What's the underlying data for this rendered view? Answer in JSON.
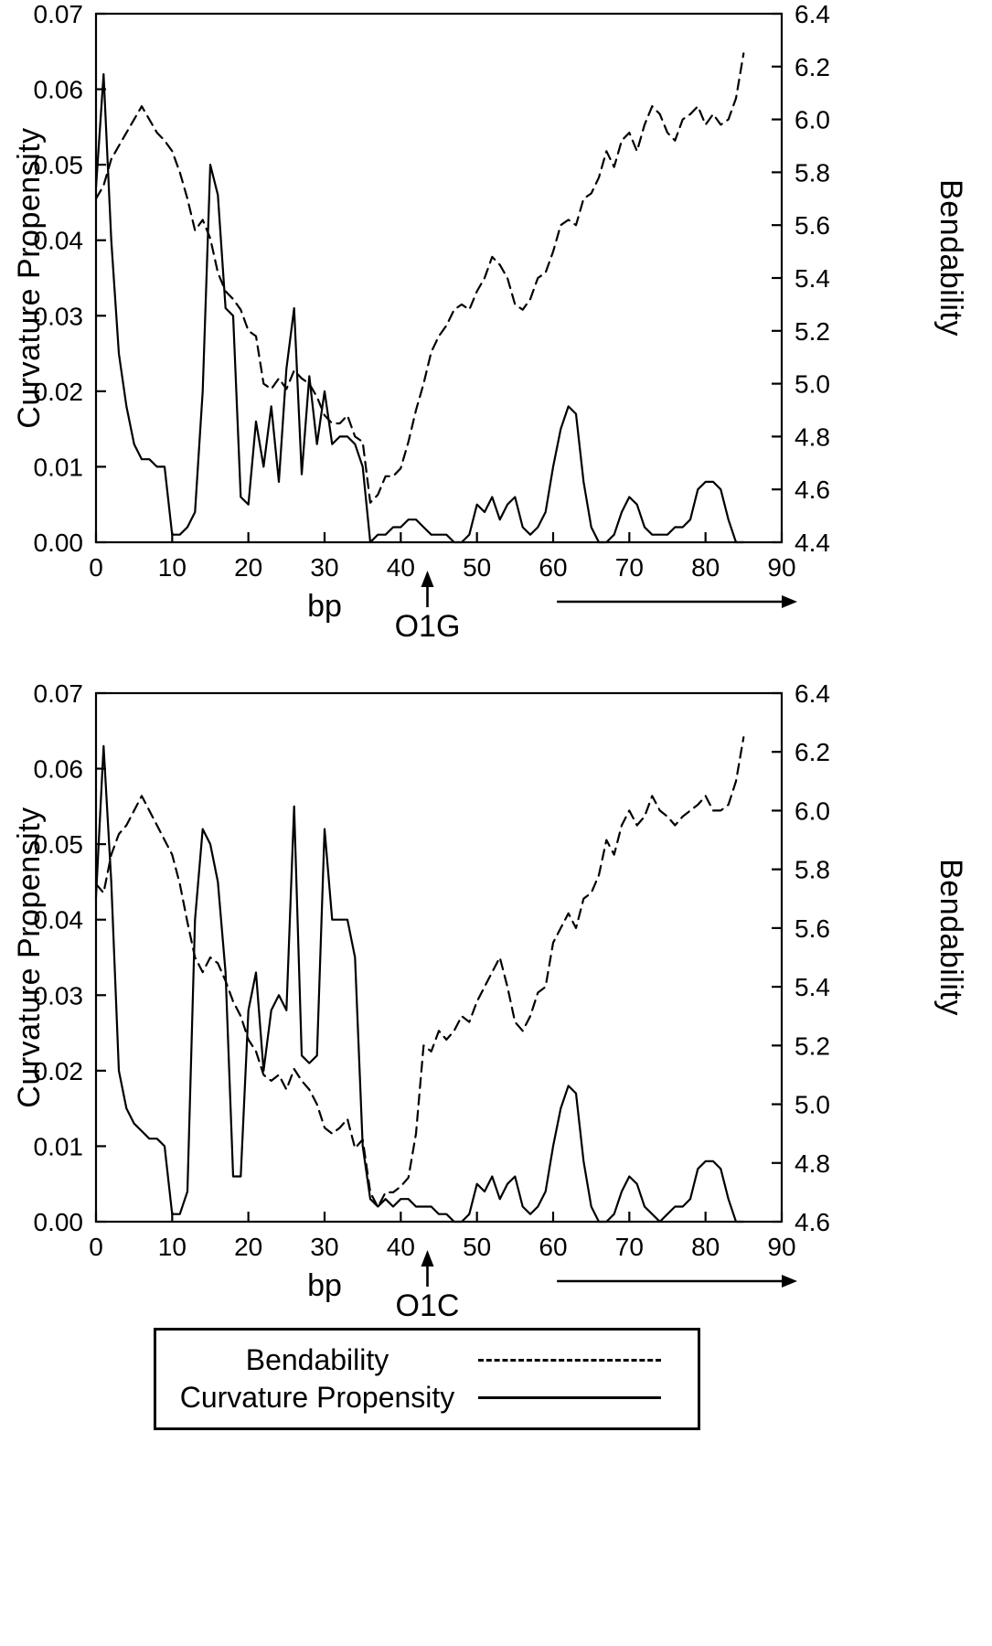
{
  "figure": {
    "background": "#ffffff",
    "line_color": "#000000"
  },
  "legend": {
    "items": [
      {
        "label": "Bendability",
        "style": "dashed"
      },
      {
        "label": "Curvature Propensity",
        "style": "solid"
      }
    ]
  },
  "chart_data": [
    {
      "type": "line",
      "title": "",
      "xlabel": "bp",
      "ylabel_left": "Curvature Propensity",
      "ylabel_right": "Bendability",
      "xlim": [
        0,
        90
      ],
      "xtick_labels": [
        "0",
        "10",
        "20",
        "30",
        "40",
        "50",
        "60",
        "70",
        "80",
        "90"
      ],
      "ylim_left": [
        0,
        0.07
      ],
      "ytick_labels_left": [
        "0.00",
        "0.01",
        "0.02",
        "0.03",
        "0.04",
        "0.05",
        "0.06",
        "0.07"
      ],
      "ylim_right": [
        4.4,
        6.4
      ],
      "ytick_labels_right": [
        "4.4",
        "4.6",
        "4.8",
        "5.0",
        "5.2",
        "5.4",
        "5.6",
        "5.8",
        "6.0",
        "6.2",
        "6.4"
      ],
      "grid": false,
      "annotation": {
        "label": "O1G",
        "x": 43.5
      },
      "direction_arrow": {
        "x_start": 60.5,
        "x_end": 90
      },
      "x": [
        0,
        1,
        2,
        3,
        4,
        5,
        6,
        7,
        8,
        9,
        10,
        11,
        12,
        13,
        14,
        15,
        16,
        17,
        18,
        19,
        20,
        21,
        22,
        23,
        24,
        25,
        26,
        27,
        28,
        29,
        30,
        31,
        32,
        33,
        34,
        35,
        36,
        37,
        38,
        39,
        40,
        41,
        42,
        43,
        44,
        45,
        46,
        47,
        48,
        49,
        50,
        51,
        52,
        53,
        54,
        55,
        56,
        57,
        58,
        59,
        60,
        61,
        62,
        63,
        64,
        65,
        66,
        67,
        68,
        69,
        70,
        71,
        72,
        73,
        74,
        75,
        76,
        77,
        78,
        79,
        80,
        81,
        82,
        83,
        84,
        85
      ],
      "series": [
        {
          "name": "Curvature Propensity",
          "axis": "left",
          "style": "solid",
          "values": [
            0.047,
            0.062,
            0.04,
            0.025,
            0.018,
            0.013,
            0.011,
            0.011,
            0.01,
            0.01,
            0.001,
            0.001,
            0.002,
            0.004,
            0.02,
            0.05,
            0.046,
            0.031,
            0.03,
            0.006,
            0.005,
            0.016,
            0.01,
            0.018,
            0.008,
            0.023,
            0.031,
            0.009,
            0.022,
            0.013,
            0.02,
            0.013,
            0.014,
            0.014,
            0.013,
            0.01,
            0.0,
            0.001,
            0.001,
            0.002,
            0.002,
            0.003,
            0.003,
            0.002,
            0.001,
            0.001,
            0.001,
            0.0,
            0.0,
            0.001,
            0.005,
            0.004,
            0.006,
            0.003,
            0.005,
            0.006,
            0.002,
            0.001,
            0.002,
            0.004,
            0.01,
            0.015,
            0.018,
            0.017,
            0.008,
            0.002,
            0.0,
            0.0,
            0.001,
            0.004,
            0.006,
            0.005,
            0.002,
            0.001,
            0.001,
            0.001,
            0.002,
            0.002,
            0.003,
            0.007,
            0.008,
            0.008,
            0.007,
            0.003,
            0.0,
            0.0
          ]
        },
        {
          "name": "Bendability",
          "axis": "right",
          "style": "dashed",
          "values": [
            5.7,
            5.75,
            5.85,
            5.9,
            5.95,
            6.0,
            6.05,
            6.0,
            5.95,
            5.92,
            5.88,
            5.8,
            5.7,
            5.58,
            5.62,
            5.55,
            5.42,
            5.35,
            5.32,
            5.28,
            5.2,
            5.18,
            5.0,
            4.98,
            5.02,
            4.98,
            5.05,
            5.02,
            5.0,
            4.95,
            4.88,
            4.85,
            4.85,
            4.88,
            4.8,
            4.78,
            4.55,
            4.58,
            4.65,
            4.65,
            4.68,
            4.78,
            4.9,
            5.0,
            5.12,
            5.18,
            5.22,
            5.28,
            5.3,
            5.28,
            5.35,
            5.4,
            5.48,
            5.45,
            5.4,
            5.3,
            5.28,
            5.32,
            5.4,
            5.42,
            5.5,
            5.6,
            5.62,
            5.6,
            5.7,
            5.72,
            5.78,
            5.88,
            5.82,
            5.92,
            5.95,
            5.88,
            5.98,
            6.05,
            6.02,
            5.95,
            5.92,
            6.0,
            6.02,
            6.05,
            5.98,
            6.02,
            5.98,
            6.0,
            6.08,
            6.25
          ]
        }
      ]
    },
    {
      "type": "line",
      "title": "",
      "xlabel": "bp",
      "ylabel_left": "Curvature Propensity",
      "ylabel_right": "Bendability",
      "xlim": [
        0,
        90
      ],
      "xtick_labels": [
        "0",
        "10",
        "20",
        "30",
        "40",
        "50",
        "60",
        "70",
        "80",
        "90"
      ],
      "ylim_left": [
        0,
        0.07
      ],
      "ytick_labels_left": [
        "0.00",
        "0.01",
        "0.02",
        "0.03",
        "0.04",
        "0.05",
        "0.06",
        "0.07"
      ],
      "ylim_right": [
        4.6,
        6.4
      ],
      "ytick_labels_right": [
        "4.6",
        "4.8",
        "5.0",
        "5.2",
        "5.4",
        "5.6",
        "5.8",
        "6.0",
        "6.2",
        "6.4"
      ],
      "grid": false,
      "annotation": {
        "label": "O1C",
        "x": 43.5
      },
      "direction_arrow": {
        "x_start": 60.5,
        "x_end": 90
      },
      "x": [
        0,
        1,
        2,
        3,
        4,
        5,
        6,
        7,
        8,
        9,
        10,
        11,
        12,
        13,
        14,
        15,
        16,
        17,
        18,
        19,
        20,
        21,
        22,
        23,
        24,
        25,
        26,
        27,
        28,
        29,
        30,
        31,
        32,
        33,
        34,
        35,
        36,
        37,
        38,
        39,
        40,
        41,
        42,
        43,
        44,
        45,
        46,
        47,
        48,
        49,
        50,
        51,
        52,
        53,
        54,
        55,
        56,
        57,
        58,
        59,
        60,
        61,
        62,
        63,
        64,
        65,
        66,
        67,
        68,
        69,
        70,
        71,
        72,
        73,
        74,
        75,
        76,
        77,
        78,
        79,
        80,
        81,
        82,
        83,
        84,
        85
      ],
      "series": [
        {
          "name": "Curvature Propensity",
          "axis": "left",
          "style": "solid",
          "values": [
            0.043,
            0.063,
            0.045,
            0.02,
            0.015,
            0.013,
            0.012,
            0.011,
            0.011,
            0.01,
            0.001,
            0.001,
            0.004,
            0.04,
            0.052,
            0.05,
            0.045,
            0.033,
            0.006,
            0.006,
            0.028,
            0.033,
            0.02,
            0.028,
            0.03,
            0.028,
            0.055,
            0.022,
            0.021,
            0.022,
            0.052,
            0.04,
            0.04,
            0.04,
            0.035,
            0.01,
            0.003,
            0.002,
            0.003,
            0.002,
            0.003,
            0.003,
            0.002,
            0.002,
            0.002,
            0.001,
            0.001,
            0.0,
            0.0,
            0.001,
            0.005,
            0.004,
            0.006,
            0.003,
            0.005,
            0.006,
            0.002,
            0.001,
            0.002,
            0.004,
            0.01,
            0.015,
            0.018,
            0.017,
            0.008,
            0.002,
            0.0,
            0.0,
            0.001,
            0.004,
            0.006,
            0.005,
            0.002,
            0.001,
            0.0,
            0.001,
            0.002,
            0.002,
            0.003,
            0.007,
            0.008,
            0.008,
            0.007,
            0.003,
            0.0,
            0.0
          ]
        },
        {
          "name": "Bendability",
          "axis": "right",
          "style": "dashed",
          "values": [
            5.75,
            5.72,
            5.85,
            5.92,
            5.95,
            6.0,
            6.05,
            6.0,
            5.95,
            5.9,
            5.85,
            5.75,
            5.62,
            5.5,
            5.45,
            5.5,
            5.48,
            5.42,
            5.35,
            5.3,
            5.22,
            5.18,
            5.1,
            5.08,
            5.1,
            5.05,
            5.12,
            5.08,
            5.05,
            5.0,
            4.92,
            4.9,
            4.92,
            4.95,
            4.85,
            4.88,
            4.7,
            4.65,
            4.7,
            4.7,
            4.72,
            4.75,
            4.9,
            5.2,
            5.18,
            5.25,
            5.22,
            5.25,
            5.3,
            5.28,
            5.35,
            5.4,
            5.45,
            5.5,
            5.4,
            5.28,
            5.25,
            5.3,
            5.38,
            5.4,
            5.55,
            5.6,
            5.65,
            5.6,
            5.7,
            5.72,
            5.78,
            5.9,
            5.85,
            5.95,
            6.0,
            5.95,
            5.98,
            6.05,
            6.0,
            5.98,
            5.95,
            5.98,
            6.0,
            6.02,
            6.05,
            6.0,
            6.0,
            6.02,
            6.1,
            6.25
          ]
        }
      ]
    }
  ]
}
